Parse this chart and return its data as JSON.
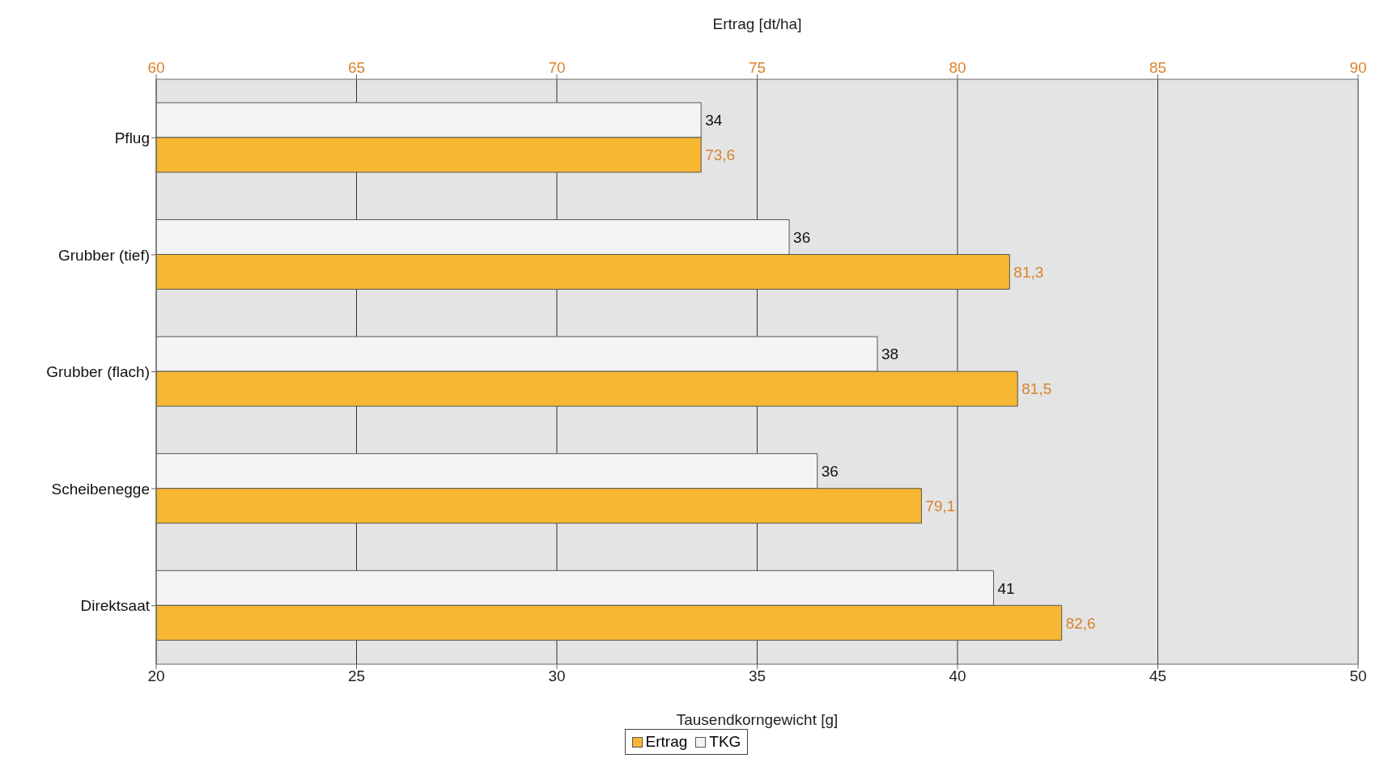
{
  "chart_data": {
    "type": "bar",
    "orientation": "horizontal",
    "xlabel": "Tausendkorngewicht [g]",
    "x2label": "Ertrag [dt/ha]",
    "categories": [
      "Pflug",
      "Grubber (tief)",
      "Grubber (flach)",
      "Scheibenegge",
      "Direktsaat"
    ],
    "series": [
      {
        "name": "Ertrag",
        "color": "#f7b733",
        "axis": "x2",
        "values": [
          73.6,
          81.3,
          81.5,
          79.1,
          82.6
        ],
        "value_labels": [
          "73,6",
          "81,3",
          "81,5",
          "79,1",
          "82,6"
        ]
      },
      {
        "name": "TKG",
        "color": "#f4f4f4",
        "values": [
          33.6,
          35.8,
          38,
          36.5,
          40.9
        ],
        "value_labels": [
          "34",
          "36",
          "38",
          "36",
          "41"
        ]
      }
    ],
    "xlim": [
      20,
      50
    ],
    "xticks": [
      20,
      25,
      30,
      35,
      40,
      45,
      50
    ],
    "x2lim": [
      60,
      90
    ],
    "x2ticks": [
      60,
      65,
      70,
      75,
      80,
      85,
      90
    ],
    "grid": "x",
    "legend": "bottom"
  }
}
